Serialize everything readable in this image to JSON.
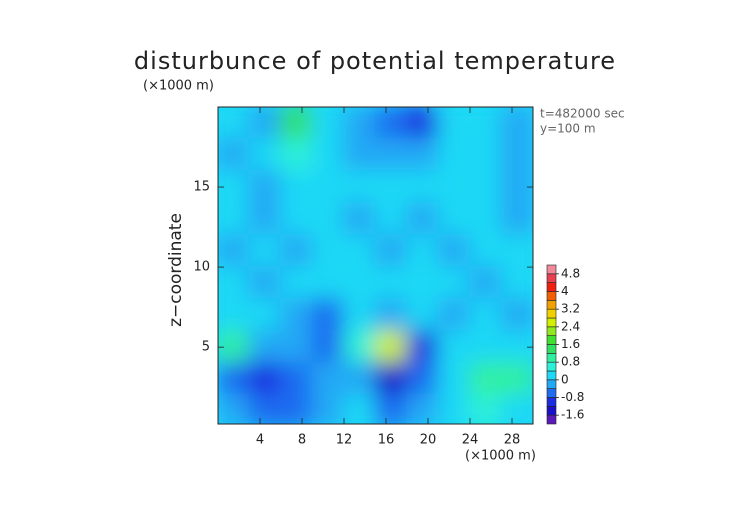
{
  "chart_data": {
    "type": "contour",
    "title": "disturbunce of potential temperature",
    "x_unit": "(×1000 m)",
    "y_unit": "(×1000 m)",
    "ylabel": "z−coordinate",
    "annotations": [
      "t=482000 sec",
      "y=100 m"
    ],
    "xlim": [
      0,
      30
    ],
    "ylim": [
      0.2,
      20
    ],
    "xticks": [
      4,
      8,
      12,
      16,
      20,
      24,
      28
    ],
    "yticks": [
      5,
      10,
      15
    ],
    "x": [
      1.5,
      4.5,
      7.5,
      10.5,
      13.5,
      16.5,
      19.5,
      22.5,
      25.5,
      28.5
    ],
    "y": [
      19,
      17,
      15,
      13,
      11,
      9,
      7,
      5,
      3,
      1
    ],
    "z": [
      [
        0,
        -0.2,
        1.2,
        0.2,
        -0.3,
        -0.6,
        -1.0,
        0.2,
        0,
        -0.2
      ],
      [
        -0.2,
        0.2,
        0.6,
        0.3,
        -0.3,
        -0.2,
        -0.3,
        0.3,
        0.2,
        -0.3
      ],
      [
        0,
        -0.3,
        0.2,
        0.3,
        0,
        0.2,
        0.3,
        0,
        0.2,
        -0.2
      ],
      [
        0.2,
        -0.3,
        0,
        0.3,
        -0.2,
        0.3,
        -0.2,
        0.2,
        0,
        -0.3
      ],
      [
        -0.2,
        0,
        -0.3,
        0.2,
        0.3,
        -0.2,
        0.2,
        -0.2,
        0.3,
        0
      ],
      [
        0,
        -0.3,
        0,
        0.2,
        0.3,
        0,
        0.3,
        0,
        -0.3,
        0.2
      ],
      [
        0.2,
        0,
        -0.2,
        -0.6,
        0,
        -0.3,
        0.2,
        -0.2,
        0,
        -0.3
      ],
      [
        0.8,
        -0.2,
        -0.2,
        -0.8,
        0.6,
        2.4,
        -1.2,
        0,
        0.3,
        0.2
      ],
      [
        -0.6,
        -1.0,
        -0.6,
        -0.4,
        -0.2,
        -1.4,
        -0.6,
        0.3,
        1.0,
        0.8
      ],
      [
        -0.3,
        -0.6,
        -0.8,
        -0.3,
        0,
        -0.6,
        -0.3,
        0,
        0.4,
        0.3
      ]
    ],
    "levels": [
      -2,
      -1.6,
      -1.2,
      -0.8,
      -0.4,
      0,
      0.4,
      0.8,
      1.2,
      1.6,
      2,
      2.4,
      2.8,
      3.2,
      3.6,
      4,
      4.4,
      4.8,
      5.2
    ],
    "colors": [
      "#5a1ab8",
      "#1a10c8",
      "#1a2ee0",
      "#1f6cf0",
      "#22a8f5",
      "#1ed8f5",
      "#2ef0d8",
      "#30f0a0",
      "#30e060",
      "#40e030",
      "#90e820",
      "#d0f000",
      "#f0d000",
      "#f0a000",
      "#f06000",
      "#f02010",
      "#e84050",
      "#f08a9a"
    ],
    "colorbar_ticks": [
      -1.6,
      -0.8,
      0,
      0.8,
      1.6,
      2.4,
      3.2,
      4,
      4.8
    ]
  }
}
